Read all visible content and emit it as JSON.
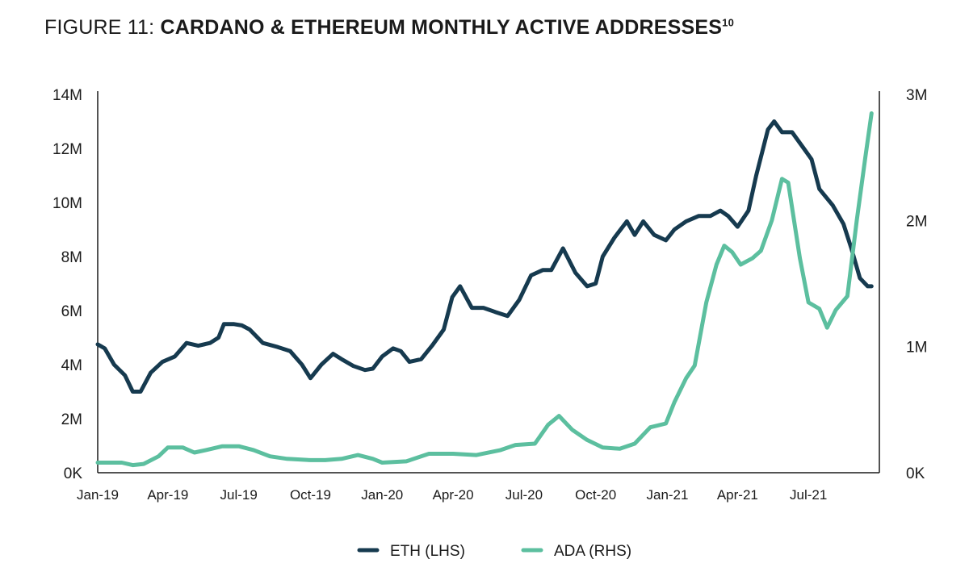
{
  "figure": {
    "title_prefix": "FIGURE 11: ",
    "title_main": "CARDANO & ETHEREUM MONTHLY ACTIVE ADDRESSES",
    "title_sup": "10"
  },
  "colors": {
    "eth": "#163a4f",
    "ada": "#5cbf9f",
    "axis": "#1a1a1a"
  },
  "chart_data": {
    "type": "line",
    "x_tick_labels": [
      "Jan-19",
      "Apr-19",
      "Jul-19",
      "Oct-19",
      "Jan-20",
      "Apr-20",
      "Jul-20",
      "Oct-20",
      "Jan-21",
      "Apr-21",
      "Jul-21"
    ],
    "x_range": [
      "2019-01-01",
      "2021-09-30"
    ],
    "y_left": {
      "ticks": [
        "0K",
        "2M",
        "4M",
        "6M",
        "8M",
        "10M",
        "12M",
        "14M"
      ],
      "range": [
        0,
        14000000
      ]
    },
    "y_right": {
      "ticks": [
        "0K",
        "1M",
        "2M",
        "3M"
      ],
      "range": [
        0,
        3000000
      ]
    },
    "legend": {
      "position": "bottom-center"
    },
    "grid": false,
    "series": [
      {
        "name": "ETH (LHS)",
        "axis": "left",
        "points": [
          [
            "2019-01-01",
            4750000
          ],
          [
            "2019-01-10",
            4600000
          ],
          [
            "2019-01-22",
            4000000
          ],
          [
            "2019-02-05",
            3600000
          ],
          [
            "2019-02-15",
            3000000
          ],
          [
            "2019-02-25",
            3000000
          ],
          [
            "2019-03-10",
            3700000
          ],
          [
            "2019-03-25",
            4100000
          ],
          [
            "2019-04-10",
            4300000
          ],
          [
            "2019-04-25",
            4800000
          ],
          [
            "2019-05-10",
            4700000
          ],
          [
            "2019-05-25",
            4800000
          ],
          [
            "2019-06-05",
            5000000
          ],
          [
            "2019-06-12",
            5500000
          ],
          [
            "2019-06-25",
            5500000
          ],
          [
            "2019-07-05",
            5450000
          ],
          [
            "2019-07-15",
            5300000
          ],
          [
            "2019-08-01",
            4800000
          ],
          [
            "2019-08-20",
            4650000
          ],
          [
            "2019-09-05",
            4500000
          ],
          [
            "2019-09-20",
            4000000
          ],
          [
            "2019-10-01",
            3500000
          ],
          [
            "2019-10-15",
            4000000
          ],
          [
            "2019-10-30",
            4400000
          ],
          [
            "2019-11-10",
            4200000
          ],
          [
            "2019-11-25",
            3950000
          ],
          [
            "2019-12-10",
            3800000
          ],
          [
            "2019-12-20",
            3850000
          ],
          [
            "2020-01-01",
            4300000
          ],
          [
            "2020-01-15",
            4600000
          ],
          [
            "2020-01-25",
            4500000
          ],
          [
            "2020-02-05",
            4100000
          ],
          [
            "2020-02-20",
            4200000
          ],
          [
            "2020-03-05",
            4700000
          ],
          [
            "2020-03-20",
            5300000
          ],
          [
            "2020-03-31",
            6500000
          ],
          [
            "2020-04-10",
            6900000
          ],
          [
            "2020-04-25",
            6100000
          ],
          [
            "2020-05-10",
            6100000
          ],
          [
            "2020-05-25",
            5950000
          ],
          [
            "2020-06-10",
            5800000
          ],
          [
            "2020-06-25",
            6400000
          ],
          [
            "2020-07-10",
            7300000
          ],
          [
            "2020-07-25",
            7500000
          ],
          [
            "2020-08-05",
            7500000
          ],
          [
            "2020-08-20",
            8300000
          ],
          [
            "2020-09-05",
            7400000
          ],
          [
            "2020-09-20",
            6900000
          ],
          [
            "2020-10-01",
            7000000
          ],
          [
            "2020-10-10",
            8000000
          ],
          [
            "2020-10-25",
            8700000
          ],
          [
            "2020-11-10",
            9300000
          ],
          [
            "2020-11-20",
            8800000
          ],
          [
            "2020-12-01",
            9300000
          ],
          [
            "2020-12-15",
            8800000
          ],
          [
            "2020-12-30",
            8600000
          ],
          [
            "2021-01-10",
            9000000
          ],
          [
            "2021-01-25",
            9300000
          ],
          [
            "2021-02-10",
            9500000
          ],
          [
            "2021-02-25",
            9500000
          ],
          [
            "2021-03-10",
            9700000
          ],
          [
            "2021-03-20",
            9500000
          ],
          [
            "2021-04-01",
            9100000
          ],
          [
            "2021-04-15",
            9700000
          ],
          [
            "2021-04-25",
            11000000
          ],
          [
            "2021-05-10",
            12700000
          ],
          [
            "2021-05-18",
            13000000
          ],
          [
            "2021-05-28",
            12600000
          ],
          [
            "2021-06-10",
            12600000
          ],
          [
            "2021-06-25",
            12000000
          ],
          [
            "2021-07-05",
            11600000
          ],
          [
            "2021-07-15",
            10500000
          ],
          [
            "2021-08-01",
            9900000
          ],
          [
            "2021-08-15",
            9200000
          ],
          [
            "2021-08-25",
            8300000
          ],
          [
            "2021-09-05",
            7200000
          ],
          [
            "2021-09-15",
            6900000
          ],
          [
            "2021-09-20",
            6900000
          ]
        ]
      },
      {
        "name": "ADA (RHS)",
        "axis": "right",
        "points": [
          [
            "2019-01-01",
            80000
          ],
          [
            "2019-02-01",
            80000
          ],
          [
            "2019-02-15",
            60000
          ],
          [
            "2019-03-01",
            70000
          ],
          [
            "2019-03-20",
            130000
          ],
          [
            "2019-04-01",
            200000
          ],
          [
            "2019-04-20",
            200000
          ],
          [
            "2019-05-05",
            160000
          ],
          [
            "2019-05-20",
            180000
          ],
          [
            "2019-06-10",
            210000
          ],
          [
            "2019-07-01",
            210000
          ],
          [
            "2019-07-20",
            180000
          ],
          [
            "2019-08-10",
            130000
          ],
          [
            "2019-09-01",
            110000
          ],
          [
            "2019-10-01",
            100000
          ],
          [
            "2019-10-20",
            100000
          ],
          [
            "2019-11-10",
            110000
          ],
          [
            "2019-12-01",
            140000
          ],
          [
            "2019-12-20",
            110000
          ],
          [
            "2020-01-01",
            80000
          ],
          [
            "2020-02-01",
            90000
          ],
          [
            "2020-03-01",
            150000
          ],
          [
            "2020-04-01",
            150000
          ],
          [
            "2020-05-01",
            140000
          ],
          [
            "2020-06-01",
            180000
          ],
          [
            "2020-06-20",
            220000
          ],
          [
            "2020-07-15",
            230000
          ],
          [
            "2020-08-01",
            380000
          ],
          [
            "2020-08-15",
            450000
          ],
          [
            "2020-09-01",
            340000
          ],
          [
            "2020-09-20",
            260000
          ],
          [
            "2020-10-10",
            200000
          ],
          [
            "2020-11-01",
            190000
          ],
          [
            "2020-11-20",
            230000
          ],
          [
            "2020-12-10",
            360000
          ],
          [
            "2020-12-30",
            390000
          ],
          [
            "2021-01-10",
            560000
          ],
          [
            "2021-01-25",
            750000
          ],
          [
            "2021-02-05",
            850000
          ],
          [
            "2021-02-20",
            1350000
          ],
          [
            "2021-03-05",
            1650000
          ],
          [
            "2021-03-15",
            1800000
          ],
          [
            "2021-03-25",
            1750000
          ],
          [
            "2021-04-05",
            1650000
          ],
          [
            "2021-04-20",
            1700000
          ],
          [
            "2021-05-01",
            1760000
          ],
          [
            "2021-05-15",
            2000000
          ],
          [
            "2021-05-28",
            2330000
          ],
          [
            "2021-06-05",
            2300000
          ],
          [
            "2021-06-20",
            1700000
          ],
          [
            "2021-07-01",
            1350000
          ],
          [
            "2021-07-15",
            1300000
          ],
          [
            "2021-07-25",
            1150000
          ],
          [
            "2021-08-05",
            1290000
          ],
          [
            "2021-08-20",
            1400000
          ],
          [
            "2021-09-01",
            2000000
          ],
          [
            "2021-09-12",
            2500000
          ],
          [
            "2021-09-20",
            2850000
          ]
        ]
      }
    ]
  }
}
